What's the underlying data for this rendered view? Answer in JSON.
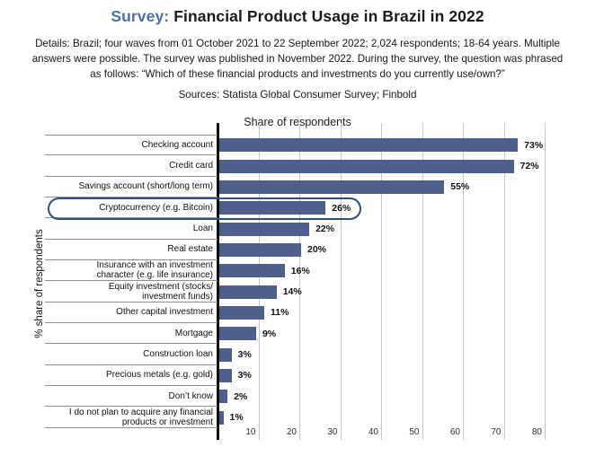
{
  "header": {
    "title_prefix": "Survey:",
    "title_rest": " Financial Product Usage in Brazil in 2022",
    "details_lines": [
      "Details: Brazil; four waves from 01 October 2021 to 22 September 2022; 2,024 respondents; 18-64 years. Multiple",
      "answers were possible. The survey was published in November 2022. During the survey, the question was phrased",
      "as follows: “Which of these financial products and investments do you currently use/own?”"
    ],
    "sources": "Sources: Statista Global Consumer Survey; Finbold"
  },
  "chart_data": {
    "type": "bar",
    "orientation": "horizontal",
    "title": "Share of respondents",
    "ylabel": "% share of respondents",
    "categories": [
      "Checking account",
      "Credit card",
      "Savings account (short/long term)",
      "Cryptocurrency (e.g. Bitcoin)",
      "Loan",
      "Real estate",
      "Insurance with an investment\ncharacter (e.g. life insurance)",
      "Equity investment (stocks/\ninvestment funds)",
      "Other capital investment",
      "Mortgage",
      "Construction loan",
      "Precious metals (e.g. gold)",
      "Don’t know",
      "I do not plan to acquire any financial\nproducts or investment"
    ],
    "values": [
      73,
      72,
      55,
      26,
      22,
      20,
      16,
      14,
      11,
      9,
      3,
      3,
      2,
      1
    ],
    "value_labels": [
      "73%",
      "72%",
      "55%",
      "26%",
      "22%",
      "20%",
      "16%",
      "14%",
      "11%",
      "9%",
      "3%",
      "3%",
      "2%",
      "1%"
    ],
    "x_ticks": [
      10,
      20,
      30,
      40,
      50,
      60,
      70,
      80
    ],
    "xlim": [
      0,
      92
    ],
    "grid": "vertical-only",
    "legend": "none",
    "highlight_index": 3,
    "highlight_category": "Cryptocurrency (e.g. Bitcoin)",
    "bar_color": "#4f5f8b",
    "highlight_outline_color": "#2e4e7e",
    "accent_color": "#4a6fa8"
  }
}
